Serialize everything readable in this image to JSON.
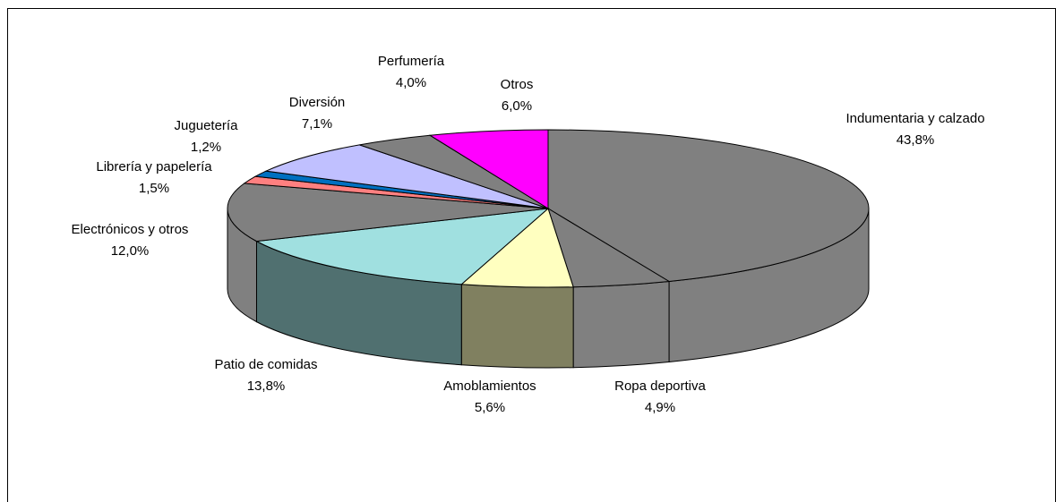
{
  "chart_data": {
    "type": "pie3d",
    "categories": [
      "Indumentaria y calzado",
      "Ropa deportiva",
      "Amoblamientos",
      "Patio de comidas",
      "Electrónicos y otros",
      "Librería y papelería",
      "Juguetería",
      "Diversión",
      "Perfumería",
      "Otros"
    ],
    "values": [
      43.8,
      4.9,
      5.6,
      13.8,
      12.0,
      1.5,
      1.2,
      7.1,
      4.0,
      6.0
    ],
    "value_labels": [
      "43,8%",
      "4,9%",
      "5,6%",
      "13,8%",
      "12,0%",
      "1,5%",
      "1,2%",
      "7,1%",
      "4,0%",
      "6,0%"
    ],
    "colors": [
      "#808080",
      "#808080",
      "#FFFFC0",
      "#A0E0E0",
      "#808080",
      "#FF8080",
      "#0070C0",
      "#C0C0FF",
      "#808080",
      "#FF00FF"
    ],
    "side_colors": [
      "#808080",
      "#808080",
      "#808060",
      "#507070",
      "#808080",
      "#804040",
      "#003860",
      "#606080",
      "#808080",
      "#800080"
    ]
  }
}
